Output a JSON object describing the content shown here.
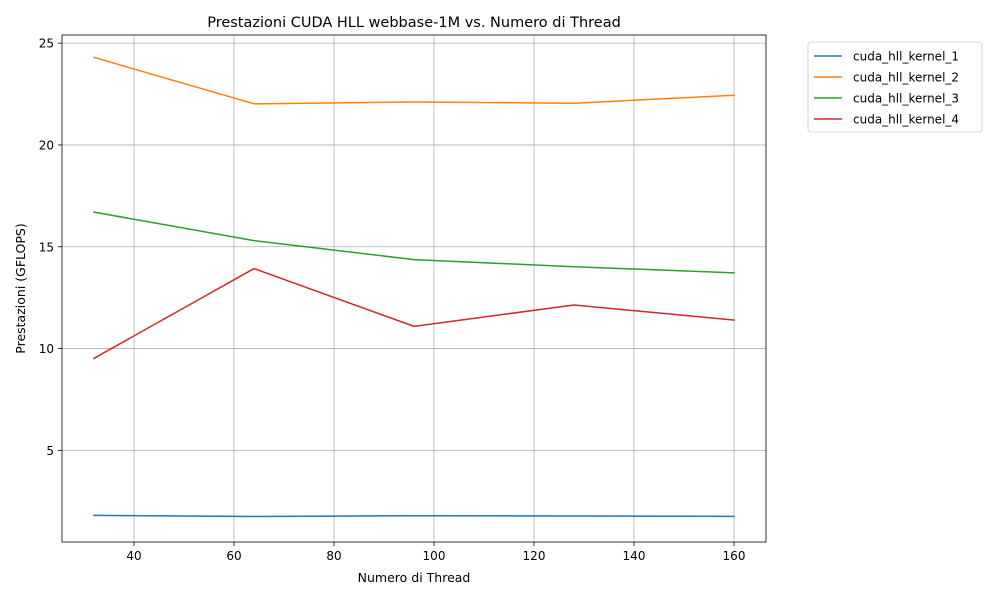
{
  "chart_data": {
    "type": "line",
    "title": "Prestazioni CUDA HLL webbase-1M vs. Numero di Thread",
    "xlabel": "Numero di Thread",
    "ylabel": "Prestazioni (GFLOPS)",
    "x": [
      32,
      64,
      96,
      128,
      160
    ],
    "xlim": [
      25.6,
      166.4
    ],
    "ylim": [
      0.5,
      25.4
    ],
    "xticks": [
      40,
      60,
      80,
      100,
      120,
      140,
      160
    ],
    "yticks": [
      5,
      10,
      15,
      20,
      25
    ],
    "grid": true,
    "legend_position": "outside-top-right",
    "series": [
      {
        "name": "cuda_hll_kernel_1",
        "color": "#1f77b4",
        "values": [
          1.81,
          1.75,
          1.79,
          1.78,
          1.76
        ]
      },
      {
        "name": "cuda_hll_kernel_2",
        "color": "#ff7f0e",
        "values": [
          24.3,
          22.02,
          22.11,
          22.05,
          22.44
        ]
      },
      {
        "name": "cuda_hll_kernel_3",
        "color": "#2ca02c",
        "values": [
          16.7,
          15.3,
          14.37,
          14.02,
          13.72
        ]
      },
      {
        "name": "cuda_hll_kernel_4",
        "color": "#d62728",
        "values": [
          9.52,
          13.93,
          11.09,
          12.14,
          11.4
        ]
      }
    ]
  }
}
